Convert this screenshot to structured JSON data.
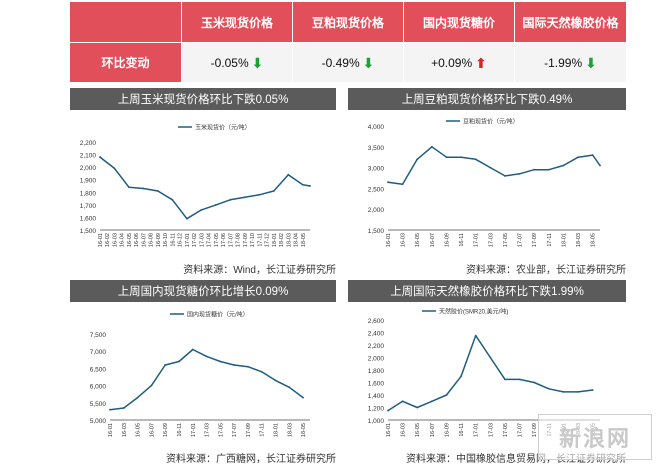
{
  "table": {
    "headers": [
      "",
      "玉米现货价格",
      "豆粕现货价格",
      "国内现货糖价",
      "国际天然橡胶价格"
    ],
    "row_label": "环比变动",
    "values": [
      "-0.05%",
      "-0.49%",
      "+0.09%",
      "-1.99%"
    ],
    "directions": [
      "down",
      "down",
      "up",
      "down"
    ],
    "arrows": {
      "down": "⬇",
      "up": "⬆"
    }
  },
  "colors": {
    "header_bg": "#e1505a",
    "line": "#1f5d80",
    "panel_title_bg": "#5b5b5b",
    "down": "#1f9e3a",
    "up": "#d8262b"
  },
  "watermark": "新浪网",
  "chart_data": [
    {
      "type": "line",
      "title": "上周玉米现货价格环比下跌0.05%",
      "series": [
        {
          "name": "玉米现货价（元/吨）",
          "x": [
            "16-01",
            "16-03",
            "16-05",
            "16-07",
            "16-09",
            "16-11",
            "17-01",
            "17-03",
            "17-05",
            "17-07",
            "17-09",
            "17-11",
            "18-01",
            "18-03",
            "18-05",
            "18-06"
          ],
          "values": [
            2080,
            1990,
            1840,
            1830,
            1810,
            1740,
            1590,
            1660,
            1700,
            1740,
            1760,
            1780,
            1810,
            1940,
            1860,
            1850
          ]
        }
      ],
      "ylim": [
        1500,
        2200
      ],
      "yticks": [
        "1,500",
        "1,600",
        "1,700",
        "1,800",
        "1,900",
        "2,000",
        "2,100",
        "2,200"
      ],
      "xticks": [
        "16-01",
        "16-02",
        "16-03",
        "16-04",
        "16-05",
        "16-06",
        "16-07",
        "16-08",
        "16-09",
        "16-10",
        "16-11",
        "16-12",
        "17-01",
        "17-02",
        "17-03",
        "17-04",
        "17-05",
        "17-06",
        "17-07",
        "17-08",
        "17-09",
        "17-10",
        "17-11",
        "17-12",
        "18-01",
        "18-02",
        "18-03",
        "18-04",
        "18-05"
      ],
      "source": "资料来源：Wind，长江证券研究所"
    },
    {
      "type": "line",
      "title": "上周豆粕现货价格环比下跌0.49%",
      "series": [
        {
          "name": "豆粕现货价（元/吨）",
          "x": [
            "16-01",
            "16-03",
            "16-05",
            "16-07",
            "16-09",
            "16-11",
            "17-01",
            "17-03",
            "17-05",
            "17-07",
            "17-09",
            "17-11",
            "18-01",
            "18-03",
            "18-05",
            "18-06"
          ],
          "values": [
            2650,
            2600,
            3200,
            3500,
            3250,
            3250,
            3200,
            3000,
            2800,
            2850,
            2950,
            2950,
            3050,
            3250,
            3300,
            3050
          ]
        }
      ],
      "ylim": [
        1500,
        4000
      ],
      "yticks": [
        "1,500",
        "2,000",
        "2,500",
        "3,000",
        "3,500",
        "4,000"
      ],
      "xticks": [
        "16-01",
        "16-03",
        "16-05",
        "16-07",
        "16-09",
        "16-11",
        "17-01",
        "17-03",
        "17-05",
        "17-07",
        "17-09",
        "17-11",
        "18-01",
        "18-03",
        "18-05"
      ],
      "source": "资料来源：农业部，长江证券研究所"
    },
    {
      "type": "line",
      "title": "上周国内现货糖价环比增长0.09%",
      "series": [
        {
          "name": "国内现货糖价（元/吨）",
          "x": [
            "16-01",
            "16-03",
            "16-05",
            "16-07",
            "16-09",
            "16-11",
            "17-01",
            "17-03",
            "17-05",
            "17-07",
            "17-09",
            "17-11",
            "18-01",
            "18-03",
            "18-05"
          ],
          "values": [
            5300,
            5350,
            5650,
            6000,
            6600,
            6700,
            7050,
            6850,
            6700,
            6600,
            6550,
            6400,
            6150,
            5950,
            5650
          ]
        }
      ],
      "ylim": [
        5000,
        7500
      ],
      "yticks": [
        "5,000",
        "5,500",
        "6,000",
        "6,500",
        "7,000",
        "7,500"
      ],
      "xticks": [
        "16-01",
        "16-03",
        "16-05",
        "16-07",
        "16-09",
        "16-11",
        "17-01",
        "17-03",
        "17-05",
        "17-07",
        "17-09",
        "17-11",
        "18-01",
        "18-03",
        "18-05"
      ],
      "source": "资料来源：广西糖网，长江证券研究所"
    },
    {
      "type": "line",
      "title": "上周国际天然橡胶价格环比下跌1.99%",
      "series": [
        {
          "name": "天然胶价(SMR20,美元/吨)",
          "x": [
            "16-01",
            "16-03",
            "16-05",
            "16-07",
            "16-09",
            "16-11",
            "17-01",
            "17-03",
            "17-05",
            "17-07",
            "17-09",
            "17-11",
            "18-01",
            "18-03",
            "18-05"
          ],
          "values": [
            1150,
            1300,
            1200,
            1300,
            1400,
            1700,
            2350,
            2000,
            1650,
            1650,
            1600,
            1500,
            1450,
            1450,
            1480
          ]
        }
      ],
      "ylim": [
        1000,
        2600
      ],
      "yticks": [
        "1,000",
        "1,200",
        "1,400",
        "1,600",
        "1,800",
        "2,000",
        "2,200",
        "2,400",
        "2,600"
      ],
      "xticks": [
        "16-01",
        "16-03",
        "16-05",
        "16-07",
        "16-09",
        "16-11",
        "17-01",
        "17-03",
        "17-05",
        "17-07",
        "17-09",
        "17-11",
        "18-01",
        "18-03",
        "18-05"
      ],
      "source": "资料来源：中国橡胶信息贸易网，长江证券研究所"
    }
  ]
}
